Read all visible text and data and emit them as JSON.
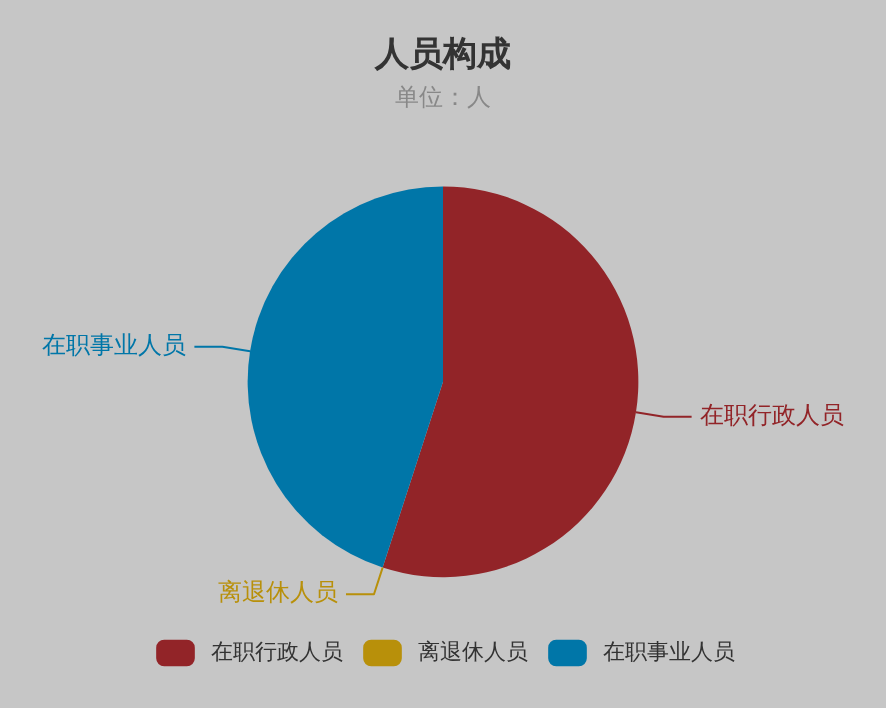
{
  "chart_data": {
    "type": "pie",
    "title": "人员构成",
    "subtitle": "单位：人",
    "categories": [
      "在职行政人员",
      "离退休人员",
      "在职事业人员"
    ],
    "values": [
      55,
      0,
      45
    ],
    "colors": [
      "#922428",
      "#b8900a",
      "#0076a8"
    ],
    "legend": "bottom"
  }
}
